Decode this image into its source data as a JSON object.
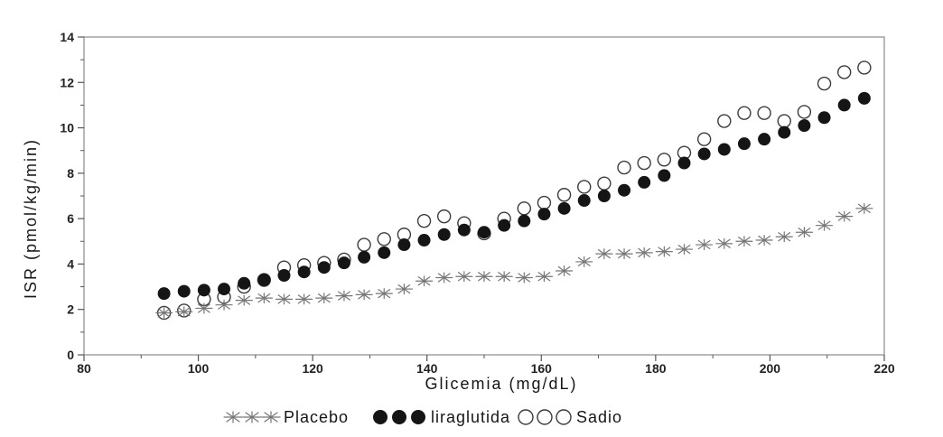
{
  "figure": {
    "background": "#ffffff",
    "axis_color": "#8a8a8a",
    "tick_color": "#555555",
    "text_color": "#1b1b1b"
  },
  "chart_data": {
    "type": "scatter",
    "title": "",
    "xlabel": "Glicemia (mg/dL)",
    "ylabel": "ISR (pmol/kg/min)",
    "xlim": [
      80,
      220
    ],
    "ylim": [
      0,
      14
    ],
    "x_ticks": [
      80,
      100,
      120,
      140,
      160,
      180,
      200,
      220
    ],
    "y_ticks": [
      0,
      2,
      4,
      6,
      8,
      10,
      12,
      14
    ],
    "x_minor_step": 10,
    "y_minor_step": 1,
    "grid": false,
    "legend_position": "bottom",
    "x": [
      94,
      97.5,
      101,
      104.5,
      108,
      111.5,
      115,
      118.5,
      122,
      125.5,
      129,
      132.5,
      136,
      139.5,
      143,
      146.5,
      150,
      153.5,
      157,
      160.5,
      164,
      167.5,
      171,
      174.5,
      178,
      181.5,
      185,
      188.5,
      192,
      195.5,
      199,
      202.5,
      206,
      209.5,
      213,
      216.5
    ],
    "series": [
      {
        "name": "Placebo",
        "marker": "asterisk",
        "color": "#767676",
        "values": [
          1.85,
          1.9,
          2.05,
          2.2,
          2.4,
          2.5,
          2.45,
          2.45,
          2.5,
          2.6,
          2.65,
          2.7,
          2.9,
          3.25,
          3.4,
          3.45,
          3.45,
          3.45,
          3.4,
          3.45,
          3.7,
          4.1,
          4.45,
          4.45,
          4.5,
          4.55,
          4.65,
          4.85,
          4.9,
          5.0,
          5.05,
          5.2,
          5.4,
          5.7,
          6.1,
          6.45
        ]
      },
      {
        "name": "liraglutida",
        "marker": "filled-circle",
        "color": "#151515",
        "values": [
          2.7,
          2.8,
          2.85,
          2.9,
          3.15,
          3.3,
          3.5,
          3.65,
          3.85,
          4.05,
          4.3,
          4.5,
          4.85,
          5.05,
          5.3,
          5.5,
          5.4,
          5.7,
          5.9,
          6.2,
          6.45,
          6.8,
          7.0,
          7.25,
          7.6,
          7.9,
          8.45,
          8.85,
          9.05,
          9.3,
          9.5,
          9.8,
          10.1,
          10.45,
          11.0,
          11.3
        ]
      },
      {
        "name": "Sadio",
        "marker": "open-circle",
        "color": "#3c3c3c",
        "values": [
          1.85,
          1.95,
          2.45,
          2.55,
          3.0,
          3.3,
          3.85,
          3.95,
          4.05,
          4.2,
          4.85,
          5.1,
          5.3,
          5.9,
          6.1,
          5.8,
          5.35,
          6.0,
          6.45,
          6.7,
          7.05,
          7.4,
          7.55,
          8.25,
          8.45,
          8.6,
          8.9,
          9.5,
          10.3,
          10.65,
          10.65,
          10.3,
          10.7,
          11.95,
          12.45,
          12.65
        ]
      }
    ]
  }
}
